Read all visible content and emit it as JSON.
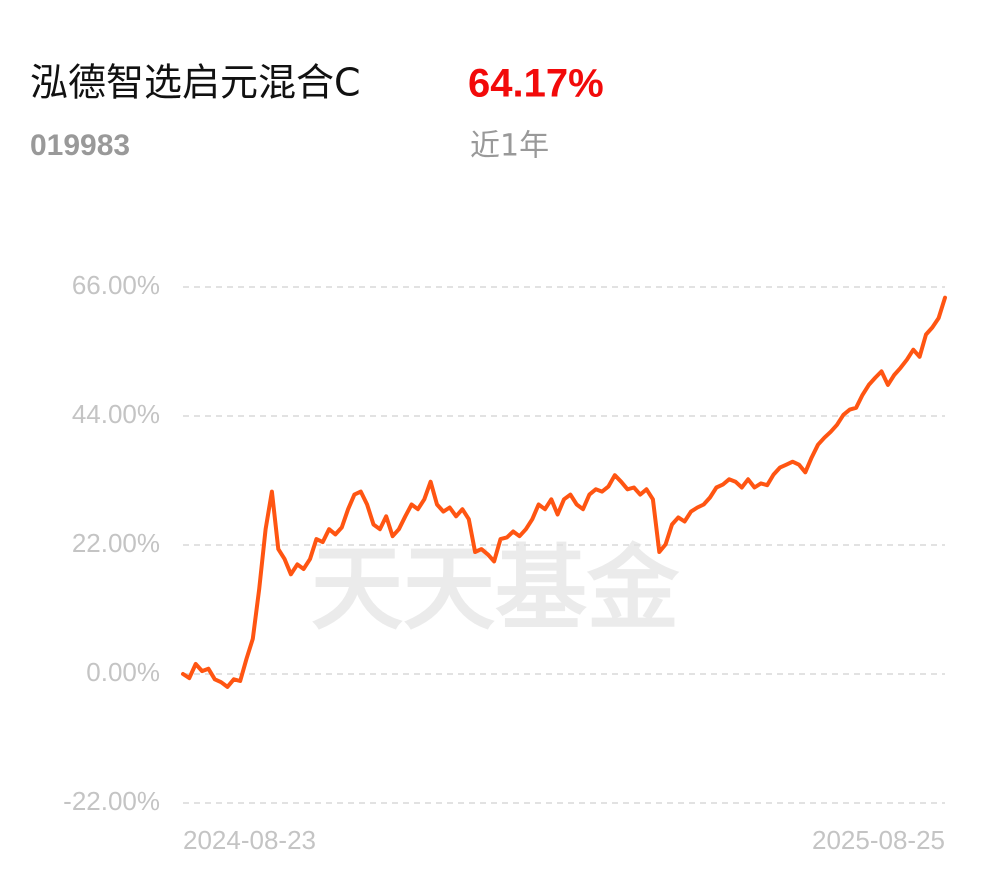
{
  "header": {
    "name": "泓德智选启元混合C",
    "return": "64.17%",
    "code": "019983",
    "period": "近1年"
  },
  "chart_data": {
    "type": "line",
    "watermark": "天天基金",
    "color": "#ff5512",
    "grid": true,
    "ylim": [
      -22,
      66
    ],
    "yticks": [
      {
        "value": -22,
        "label": "-22.00%"
      },
      {
        "value": 0,
        "label": "0.00%"
      },
      {
        "value": 22,
        "label": "22.00%"
      },
      {
        "value": 44,
        "label": "44.00%"
      },
      {
        "value": 66,
        "label": "66.00%"
      }
    ],
    "categories": [
      "2024-08-23",
      null,
      null,
      null,
      null,
      null,
      null,
      null,
      null,
      null,
      null,
      null,
      null,
      null,
      null,
      null,
      null,
      null,
      null,
      null,
      null,
      null,
      null,
      null,
      null,
      null,
      null,
      null,
      null,
      null,
      null,
      null,
      null,
      null,
      null,
      null,
      null,
      null,
      null,
      null,
      null,
      null,
      null,
      null,
      null,
      null,
      null,
      null,
      null,
      null,
      null,
      null,
      null,
      null,
      null,
      null,
      null,
      null,
      null,
      null,
      null,
      null,
      null,
      null,
      null,
      null,
      null,
      null,
      null,
      null,
      null,
      null,
      null,
      null,
      null,
      null,
      null,
      null,
      null,
      null,
      null,
      null,
      null,
      null,
      null,
      null,
      null,
      null,
      null,
      null,
      null,
      null,
      null,
      null,
      null,
      null,
      null,
      null,
      null,
      null,
      null,
      null,
      null,
      null,
      null,
      null,
      null,
      null,
      null,
      null,
      null,
      null,
      null,
      null,
      null,
      null,
      null,
      null,
      null,
      null,
      "2025-08-25"
    ],
    "values": [
      0,
      -0.7,
      1.7,
      0.5,
      0.9,
      -0.9,
      -1.4,
      -2.2,
      -0.9,
      -1.2,
      2.6,
      6.0,
      14.5,
      24.7,
      31.1,
      21.3,
      19.6,
      17.0,
      18.7,
      17.9,
      19.6,
      23.0,
      22.5,
      24.7,
      23.8,
      25.0,
      28.1,
      30.6,
      31.1,
      28.9,
      25.5,
      24.7,
      26.9,
      23.5,
      24.7,
      26.9,
      28.9,
      28.1,
      29.8,
      32.8,
      28.9,
      27.7,
      28.4,
      26.9,
      28.1,
      26.4,
      20.8,
      21.3,
      20.4,
      19.2,
      23.0,
      23.3,
      24.3,
      23.5,
      24.7,
      26.4,
      28.9,
      28.1,
      29.8,
      27.2,
      29.8,
      30.6,
      28.9,
      28.1,
      30.6,
      31.5,
      31.1,
      32.0,
      33.9,
      32.8,
      31.5,
      31.8,
      30.6,
      31.5,
      29.8,
      20.8,
      22.1,
      25.5,
      26.7,
      26.0,
      27.7,
      28.4,
      28.9,
      30.1,
      31.8,
      32.3,
      33.2,
      32.8,
      31.8,
      33.2,
      31.8,
      32.5,
      32.2,
      34.0,
      35.2,
      35.7,
      36.2,
      35.7,
      34.4,
      36.9,
      39.1,
      40.3,
      41.3,
      42.5,
      44.2,
      45.1,
      45.4,
      47.6,
      49.3,
      50.5,
      51.6,
      49.3,
      51.0,
      52.2,
      53.6,
      55.3,
      54.1,
      57.9,
      59.1,
      60.7,
      64.17
    ]
  }
}
